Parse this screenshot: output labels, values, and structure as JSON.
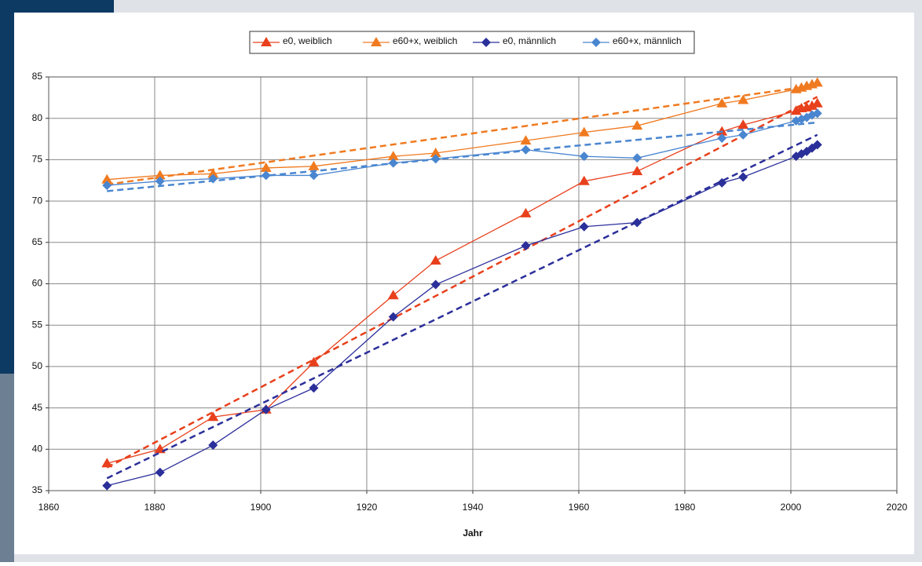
{
  "chart_data": {
    "type": "line",
    "xlabel": "Jahr",
    "x": [
      1871,
      1881,
      1891,
      1901,
      1910,
      1925,
      1933,
      1950,
      1961,
      1971,
      1987,
      1991,
      2001,
      2002,
      2003,
      2004,
      2005
    ],
    "xlim": [
      1860,
      2020
    ],
    "xticks": [
      1860,
      1880,
      1900,
      1920,
      1940,
      1960,
      1980,
      2000,
      2020
    ],
    "ylim": [
      35,
      85
    ],
    "yticks": [
      35,
      40,
      45,
      50,
      55,
      60,
      65,
      70,
      75,
      80,
      85
    ],
    "grid": true,
    "legend": "top",
    "trend_x": [
      1871,
      2005
    ],
    "series": [
      {
        "name": "e0, weiblich",
        "color": "#e8401c",
        "marker": "triangle",
        "trend": [
          37.8,
          82.6
        ],
        "values": [
          38.3,
          40.0,
          43.9,
          44.8,
          50.5,
          58.6,
          62.8,
          68.5,
          72.4,
          73.6,
          78.4,
          79.2,
          80.9,
          81.2,
          81.3,
          81.5,
          81.8
        ]
      },
      {
        "name": "e60+x, weiblich",
        "color": "#f07a20",
        "marker": "triangle",
        "trend": [
          72.0,
          84.0
        ],
        "values": [
          72.6,
          73.1,
          73.3,
          74.0,
          74.2,
          75.4,
          75.8,
          77.3,
          78.3,
          79.1,
          81.8,
          82.2,
          83.5,
          83.7,
          83.9,
          84.1,
          84.3
        ]
      },
      {
        "name": "e0, männlich",
        "color": "#2b2f9a",
        "marker": "diamond",
        "trend": [
          36.5,
          78.0
        ],
        "values": [
          35.6,
          37.2,
          40.5,
          44.8,
          47.4,
          56.0,
          59.9,
          64.6,
          66.9,
          67.4,
          72.2,
          72.9,
          75.4,
          75.7,
          76.0,
          76.4,
          76.8
        ]
      },
      {
        "name": "e60+x, männlich",
        "color": "#4a86d0",
        "marker": "diamond",
        "trend": [
          71.2,
          79.5
        ],
        "values": [
          71.9,
          72.4,
          72.7,
          73.1,
          73.1,
          74.6,
          75.1,
          76.2,
          75.4,
          75.2,
          77.6,
          78.0,
          79.7,
          79.9,
          80.1,
          80.4,
          80.6
        ]
      }
    ]
  }
}
